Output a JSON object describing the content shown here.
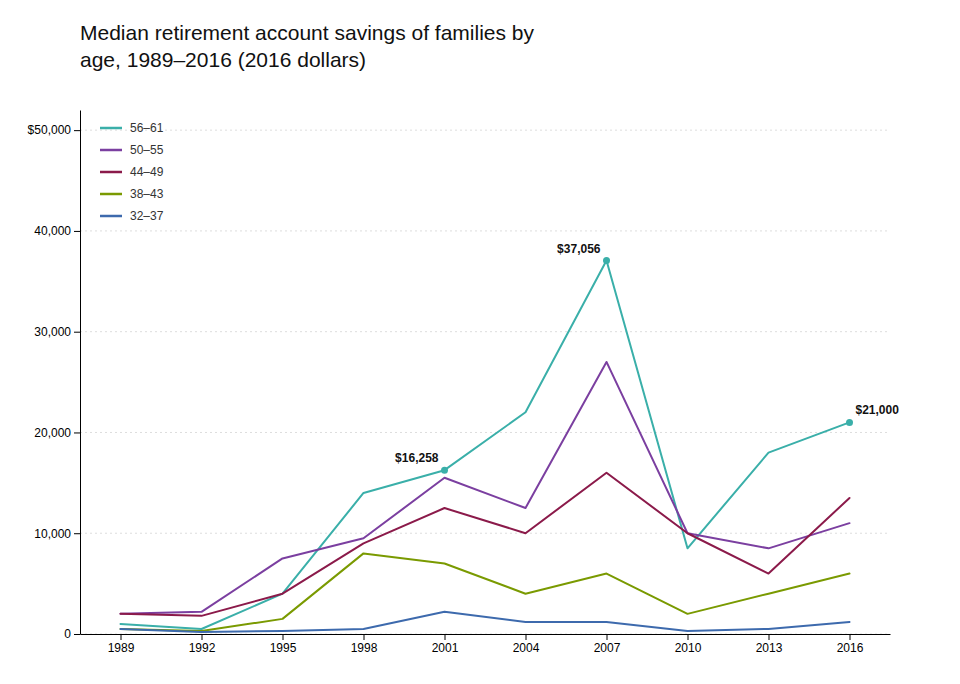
{
  "chart_data": {
    "type": "line",
    "title": "Median retirement account savings of families by\nage, 1989–2016 (2016 dollars)",
    "x": [
      1989,
      1992,
      1995,
      1998,
      2001,
      2004,
      2007,
      2010,
      2013,
      2016
    ],
    "xlim": [
      1987.5,
      2017.5
    ],
    "xticks": [
      1989,
      1992,
      1995,
      1998,
      2001,
      2004,
      2007,
      2010,
      2013,
      2016
    ],
    "ylim": [
      0,
      52000
    ],
    "yticks": [
      0,
      {
        "value": 10000,
        "label": "10,000"
      },
      {
        "value": 20000,
        "label": "20,000"
      },
      {
        "value": 30000,
        "label": "30,000"
      },
      {
        "value": 40000,
        "label": "40,000"
      },
      {
        "value": 50000,
        "label": "$50,000"
      }
    ],
    "grid": true,
    "legend": "upper left",
    "series": [
      {
        "name": "56–61",
        "color": "#3aafa9",
        "values": [
          1000,
          500,
          4000,
          14000,
          16258,
          22000,
          37056,
          8500,
          18000,
          21000
        ]
      },
      {
        "name": "50–55",
        "color": "#7b3fa0",
        "values": [
          2000,
          2200,
          7500,
          9500,
          15500,
          12500,
          27000,
          10000,
          8500,
          11000
        ]
      },
      {
        "name": "44–49",
        "color": "#8b1a4a",
        "values": [
          2000,
          1800,
          4000,
          9000,
          12500,
          10000,
          16000,
          10000,
          6000,
          13500
        ]
      },
      {
        "name": "38–43",
        "color": "#7a9a01",
        "values": [
          500,
          300,
          1500,
          8000,
          7000,
          4000,
          6000,
          2000,
          4000,
          6000
        ]
      },
      {
        "name": "32–37",
        "color": "#3d6aad",
        "values": [
          500,
          200,
          300,
          500,
          2200,
          1200,
          1200,
          300,
          500,
          1200
        ]
      }
    ],
    "annotations": [
      {
        "series": "56–61",
        "x": 2001,
        "value": 16258,
        "label": "$16,258"
      },
      {
        "series": "56–61",
        "x": 2007,
        "value": 37056,
        "label": "$37,056"
      },
      {
        "series": "56–61",
        "x": 2016,
        "value": 21000,
        "label": "$21,000"
      }
    ]
  }
}
